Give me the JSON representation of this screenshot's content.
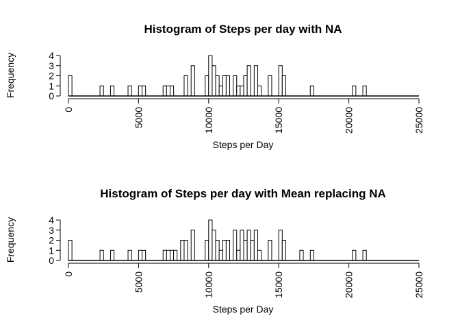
{
  "chart_data": [
    {
      "type": "bar",
      "title": "Histogram of Steps per day with NA",
      "xlabel": "Steps per Day",
      "ylabel": "Frequency",
      "xlim": [
        0,
        25000
      ],
      "ylim": [
        0,
        4
      ],
      "bin_width": 250,
      "x_ticks": [
        "0",
        "5000",
        "10000",
        "15000",
        "20000",
        "25000"
      ],
      "y_ticks": [
        "0",
        "1",
        "2",
        "3",
        "4"
      ],
      "grid": false,
      "bars": [
        {
          "x": 0,
          "count": 2
        },
        {
          "x": 2250,
          "count": 1
        },
        {
          "x": 3000,
          "count": 1
        },
        {
          "x": 4250,
          "count": 1
        },
        {
          "x": 5000,
          "count": 1
        },
        {
          "x": 5250,
          "count": 1
        },
        {
          "x": 6750,
          "count": 1
        },
        {
          "x": 7000,
          "count": 1
        },
        {
          "x": 7250,
          "count": 1
        },
        {
          "x": 8250,
          "count": 2
        },
        {
          "x": 8750,
          "count": 3
        },
        {
          "x": 9750,
          "count": 2
        },
        {
          "x": 10000,
          "count": 4
        },
        {
          "x": 10250,
          "count": 3
        },
        {
          "x": 10500,
          "count": 2
        },
        {
          "x": 10750,
          "count": 1
        },
        {
          "x": 11000,
          "count": 2
        },
        {
          "x": 11250,
          "count": 2
        },
        {
          "x": 11750,
          "count": 2
        },
        {
          "x": 12000,
          "count": 1
        },
        {
          "x": 12250,
          "count": 1
        },
        {
          "x": 12500,
          "count": 2
        },
        {
          "x": 12750,
          "count": 3
        },
        {
          "x": 13250,
          "count": 3
        },
        {
          "x": 13500,
          "count": 1
        },
        {
          "x": 14250,
          "count": 2
        },
        {
          "x": 15000,
          "count": 3
        },
        {
          "x": 15250,
          "count": 2
        },
        {
          "x": 17250,
          "count": 1
        },
        {
          "x": 20250,
          "count": 1
        },
        {
          "x": 21000,
          "count": 1
        }
      ]
    },
    {
      "type": "bar",
      "title": "Histogram of Steps per day with Mean replacing NA",
      "xlabel": "Steps per Day",
      "ylabel": "Frequency",
      "xlim": [
        0,
        25000
      ],
      "ylim": [
        0,
        4
      ],
      "bin_width": 250,
      "x_ticks": [
        "0",
        "5000",
        "10000",
        "15000",
        "20000",
        "25000"
      ],
      "y_ticks": [
        "0",
        "1",
        "2",
        "3",
        "4"
      ],
      "grid": false,
      "bars": [
        {
          "x": 0,
          "count": 2
        },
        {
          "x": 2250,
          "count": 1
        },
        {
          "x": 3000,
          "count": 1
        },
        {
          "x": 4250,
          "count": 1
        },
        {
          "x": 5000,
          "count": 1
        },
        {
          "x": 5250,
          "count": 1
        },
        {
          "x": 6750,
          "count": 1
        },
        {
          "x": 7000,
          "count": 1
        },
        {
          "x": 7250,
          "count": 1
        },
        {
          "x": 7500,
          "count": 1
        },
        {
          "x": 8000,
          "count": 2
        },
        {
          "x": 8250,
          "count": 2
        },
        {
          "x": 8750,
          "count": 3
        },
        {
          "x": 9750,
          "count": 2
        },
        {
          "x": 10000,
          "count": 4
        },
        {
          "x": 10250,
          "count": 3
        },
        {
          "x": 10500,
          "count": 2
        },
        {
          "x": 10750,
          "count": 1
        },
        {
          "x": 11000,
          "count": 2
        },
        {
          "x": 11250,
          "count": 2
        },
        {
          "x": 11750,
          "count": 3
        },
        {
          "x": 12000,
          "count": 1
        },
        {
          "x": 12250,
          "count": 3
        },
        {
          "x": 12500,
          "count": 2
        },
        {
          "x": 12750,
          "count": 3
        },
        {
          "x": 13000,
          "count": 2
        },
        {
          "x": 13250,
          "count": 3
        },
        {
          "x": 13500,
          "count": 1
        },
        {
          "x": 14250,
          "count": 2
        },
        {
          "x": 15000,
          "count": 3
        },
        {
          "x": 15250,
          "count": 2
        },
        {
          "x": 16500,
          "count": 1
        },
        {
          "x": 17250,
          "count": 1
        },
        {
          "x": 20250,
          "count": 1
        },
        {
          "x": 21000,
          "count": 1
        }
      ]
    }
  ]
}
